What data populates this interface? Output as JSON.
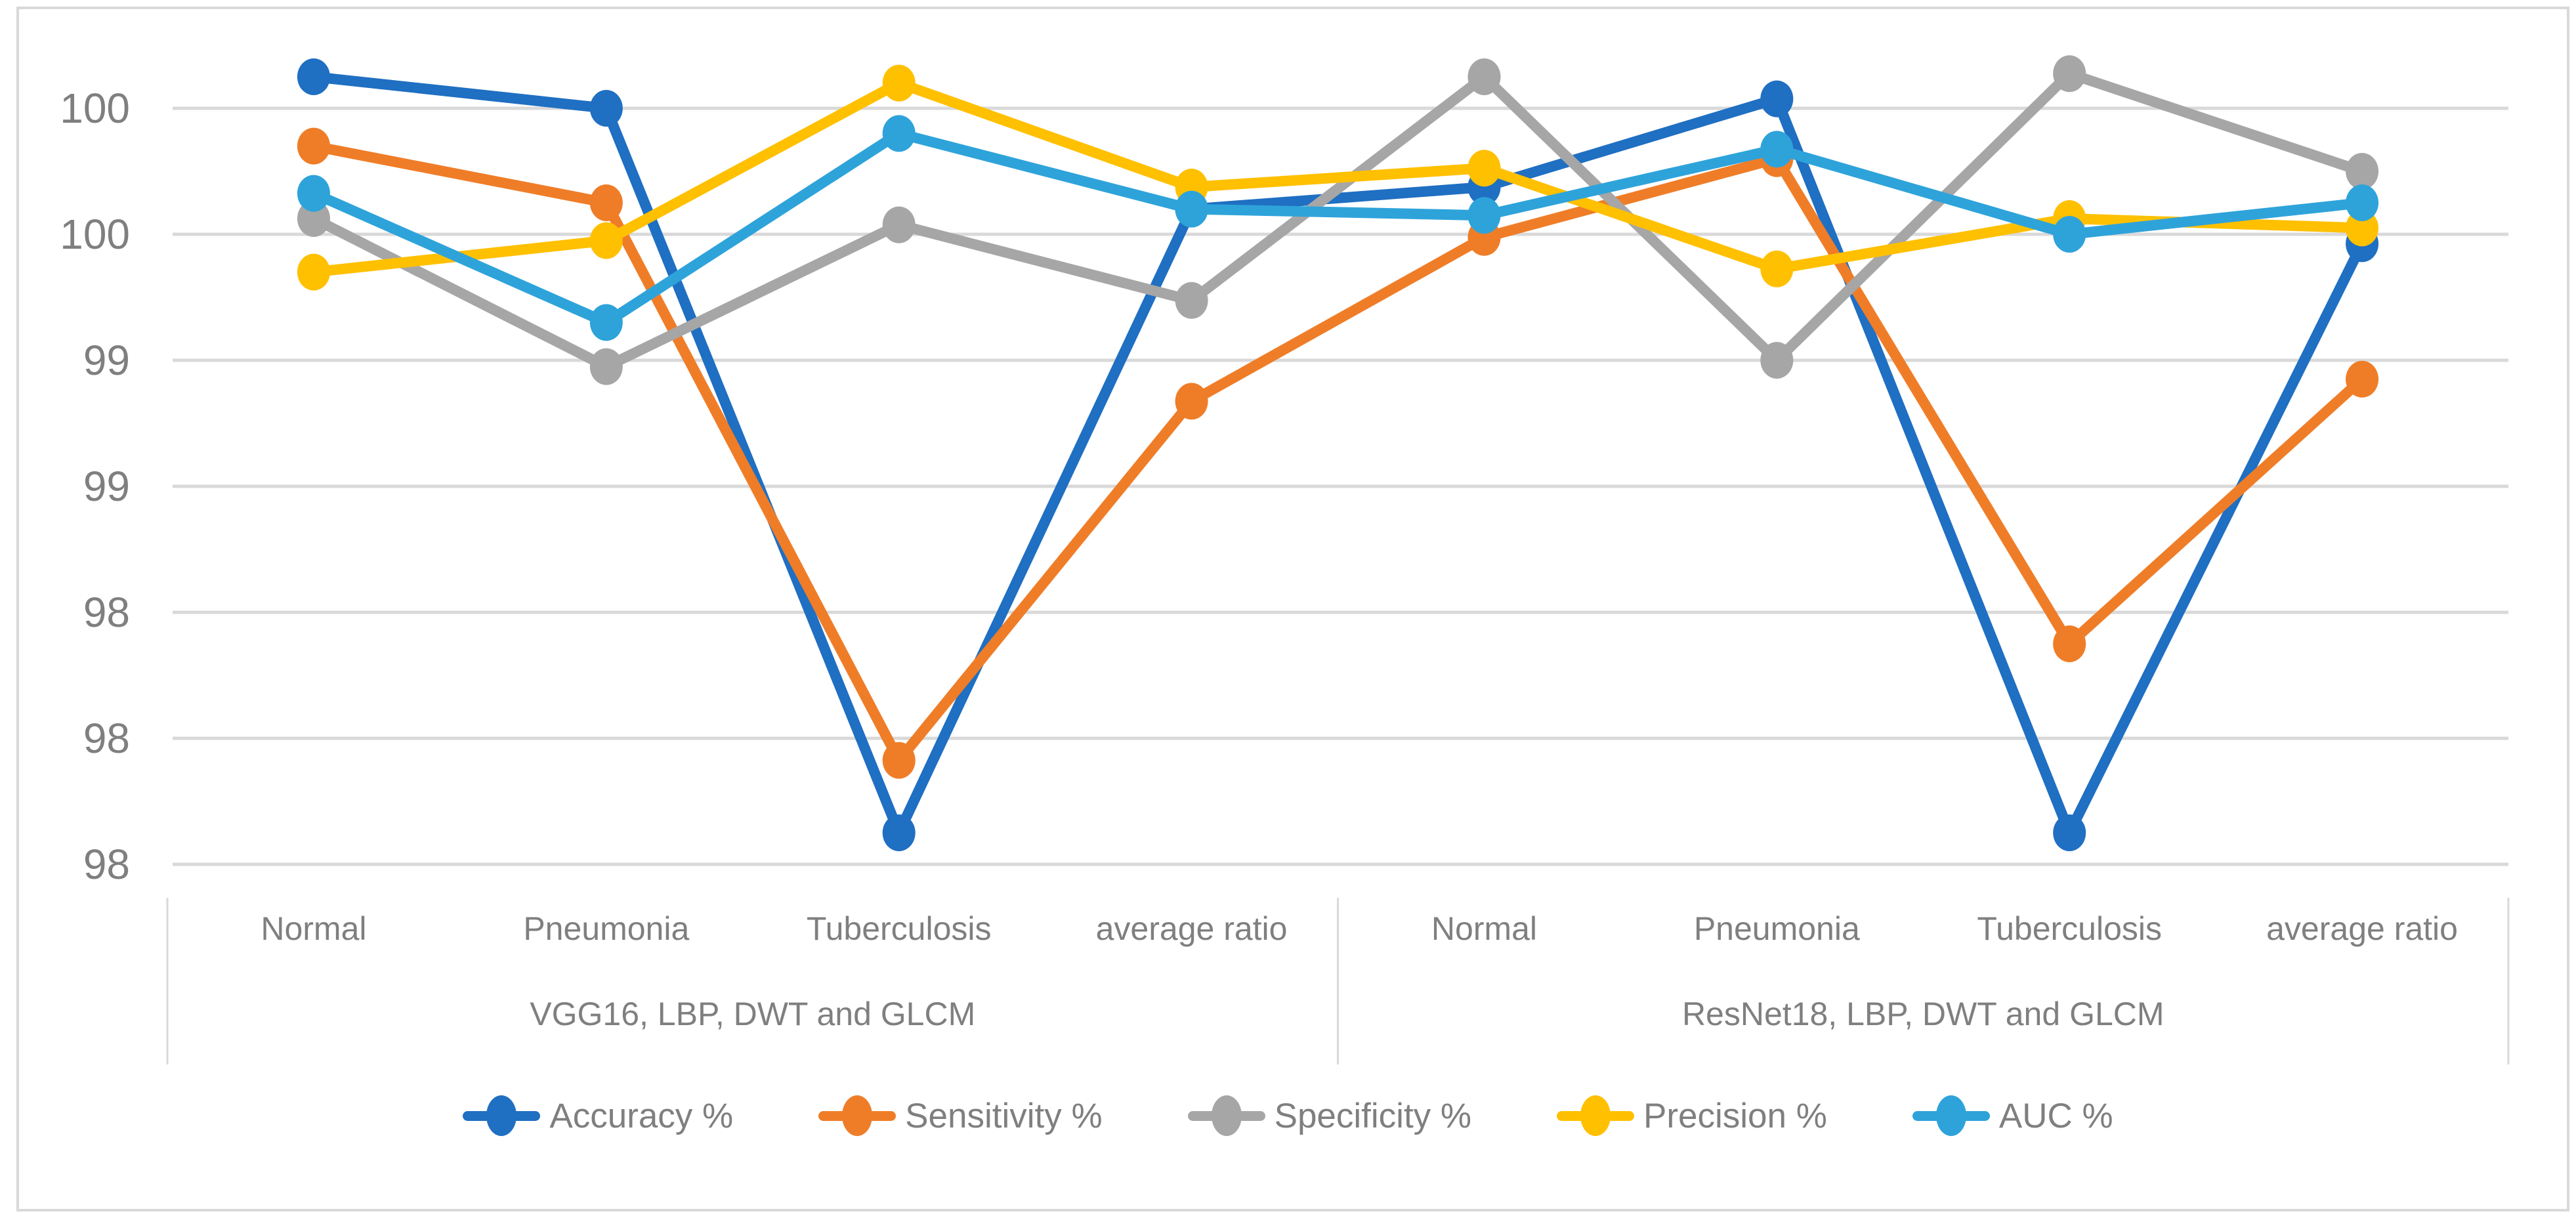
{
  "chart_data": {
    "type": "line",
    "title": "",
    "xlabel": "",
    "ylabel": "",
    "grid": true,
    "legend_position": "bottom",
    "categories": [
      "Normal",
      "Pneumonia",
      "Tuberculosis",
      "average ratio",
      "Normal",
      "Pneumonia",
      "Tuberculosis",
      "average ratio"
    ],
    "category_groups": [
      {
        "label": "VGG16, LBP, DWT and GLCM",
        "span": [
          0,
          3
        ]
      },
      {
        "label": "ResNet18, LBP, DWT and GLCM",
        "span": [
          4,
          7
        ]
      }
    ],
    "y_axis": {
      "ticks": [
        {
          "value": 100.0,
          "label": "100"
        },
        {
          "value": 99.6,
          "label": "100"
        },
        {
          "value": 99.2,
          "label": "99"
        },
        {
          "value": 98.8,
          "label": "99"
        },
        {
          "value": 98.4,
          "label": "98"
        },
        {
          "value": 98.0,
          "label": "98"
        },
        {
          "value": 97.6,
          "label": "98"
        }
      ],
      "range": [
        97.5,
        100.22
      ]
    },
    "series": [
      {
        "name": "Accuracy %",
        "color": "#1f6fc2",
        "values": [
          100.1,
          100.0,
          97.7,
          99.68,
          99.75,
          100.03,
          97.7,
          99.57
        ]
      },
      {
        "name": "Sensitivity %",
        "color": "#ef7d28",
        "values": [
          99.88,
          99.7,
          97.93,
          99.07,
          99.59,
          99.84,
          98.3,
          99.14
        ]
      },
      {
        "name": "Specificity %",
        "color": "#a6a6a6",
        "values": [
          99.65,
          99.18,
          99.63,
          99.39,
          100.1,
          99.2,
          100.11,
          99.8
        ]
      },
      {
        "name": "Precision %",
        "color": "#ffc000",
        "values": [
          99.48,
          99.58,
          100.08,
          99.75,
          99.81,
          99.49,
          99.65,
          99.62
        ]
      },
      {
        "name": "AUC %",
        "color": "#2ea3da",
        "values": [
          99.73,
          99.32,
          99.92,
          99.68,
          99.66,
          99.87,
          99.6,
          99.7
        ]
      }
    ],
    "style": {
      "gridline_color": "#d9d9d9",
      "border_color": "#d9d9d9",
      "text_color": "#7f7f7f",
      "background": "#ffffff"
    }
  }
}
